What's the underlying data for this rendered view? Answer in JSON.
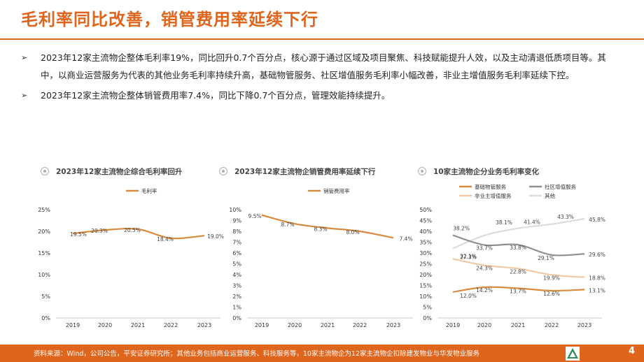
{
  "title": "毛利率同比改善，销管费用率延续下行",
  "bullets": [
    {
      "marker": "➢",
      "text": "2023年12家主流物企整体毛利率19%，同比回升0.7个百分点，核心源于通过区域及项目聚焦、科技赋能提升人效，以及主动清退低质项目等。其中，以商业运营服务为代表的其他业务毛利率持续升高，基础物管服务、社区增值服务毛利率小幅改善，非业主增值服务毛利率延续下控。"
    },
    {
      "marker": "➢",
      "text": "2023年12家主流物企整体销管费用率7.4%，同比下降0.7个百分点，管理效能持续提升。"
    }
  ],
  "charts": [
    {
      "title": "2023年12家主流物企综合毛利率回升"
    },
    {
      "title": "2023年12家主流物企销管费用率延续下行"
    },
    {
      "title": "10家主流物企分业务毛利率变化"
    }
  ],
  "chart_data": [
    {
      "type": "line",
      "title": "2023年12家主流物企综合毛利率回升",
      "x": [
        "2019",
        "2020",
        "2021",
        "2022",
        "2023"
      ],
      "series": [
        {
          "name": "毛利率",
          "color": "#d98a3d",
          "values": [
            19.5,
            20.3,
            20.5,
            18.4,
            19.0
          ]
        }
      ],
      "data_labels": [
        "19.5%",
        "20.3%",
        "20.5%",
        "18.4%",
        "19.0%"
      ],
      "ylim": [
        0,
        25
      ],
      "yticks": [
        0,
        5,
        10,
        15,
        20,
        25
      ],
      "ytick_labels": [
        "0%",
        "5%",
        "10%",
        "15%",
        "20%",
        "25%"
      ],
      "legend": "top"
    },
    {
      "type": "line",
      "title": "2023年12家主流物企销管费用率延续下行",
      "x": [
        "2019",
        "2020",
        "2021",
        "2022",
        "2023"
      ],
      "series": [
        {
          "name": "销管费用率",
          "color": "#d98a3d",
          "values": [
            9.5,
            8.7,
            8.3,
            8.0,
            7.4
          ]
        }
      ],
      "data_labels": [
        "9.5%",
        "8.7%",
        "8.3%",
        "8.0%",
        "7.4%"
      ],
      "ylim": [
        0,
        10
      ],
      "yticks": [
        0,
        1,
        2,
        3,
        4,
        5,
        6,
        7,
        8,
        9,
        10
      ],
      "ytick_labels": [
        "0%",
        "1%",
        "2%",
        "3%",
        "4%",
        "5%",
        "6%",
        "7%",
        "8%",
        "9%",
        "10%"
      ],
      "legend": "top"
    },
    {
      "type": "line",
      "title": "10家主流物企分业务毛利率变化",
      "x": [
        "2019",
        "2020",
        "2021",
        "2022",
        "2023"
      ],
      "series": [
        {
          "name": "基础物管服务",
          "color": "#d98a3d",
          "values": [
            12.0,
            14.2,
            13.7,
            12.6,
            13.1
          ],
          "data_labels": [
            "12.0%",
            "14.2%",
            "13.7%",
            "12.6%",
            "13.1%"
          ]
        },
        {
          "name": "社区增值服务",
          "color": "#8f8f8f",
          "values": [
            38.2,
            33.7,
            33.8,
            29.1,
            29.6
          ],
          "data_labels": [
            "38.2%",
            "33.7%",
            "33.8%",
            "29.1%",
            "29.6%"
          ]
        },
        {
          "name": "非业主增值服务",
          "color": "#f2c9a4",
          "values": [
            27.3,
            24.3,
            22.8,
            19.9,
            18.8
          ],
          "data_labels": [
            "27.3%",
            "24.3%",
            "22.8%",
            "19.9%",
            "18.8%"
          ]
        },
        {
          "name": "其他",
          "color": "#dcdcdc",
          "values": [
            32.1,
            38.1,
            41.4,
            43.3,
            45.8
          ],
          "data_labels": [
            "32.1%",
            "38.1%",
            "41.4%",
            "43.3%",
            "45.8%"
          ]
        }
      ],
      "ylim": [
        0,
        50
      ],
      "yticks": [
        0,
        5,
        10,
        15,
        20,
        25,
        30,
        35,
        40,
        45,
        50
      ],
      "ytick_labels": [
        "0%",
        "5%",
        "10%",
        "15%",
        "20%",
        "25%",
        "30%",
        "35%",
        "40%",
        "45%",
        "50%"
      ],
      "legend": "top"
    }
  ],
  "footer": {
    "source": "资料来源：Wind，公司公告，平安证券研究所；其他业务包括商业运营服务、科技服务等，10家主流物企为12家主流物企扣除建发物业与华发物业服务",
    "page": "4"
  },
  "colors": {
    "accent": "#e0651c",
    "line": "#d98a3d"
  }
}
